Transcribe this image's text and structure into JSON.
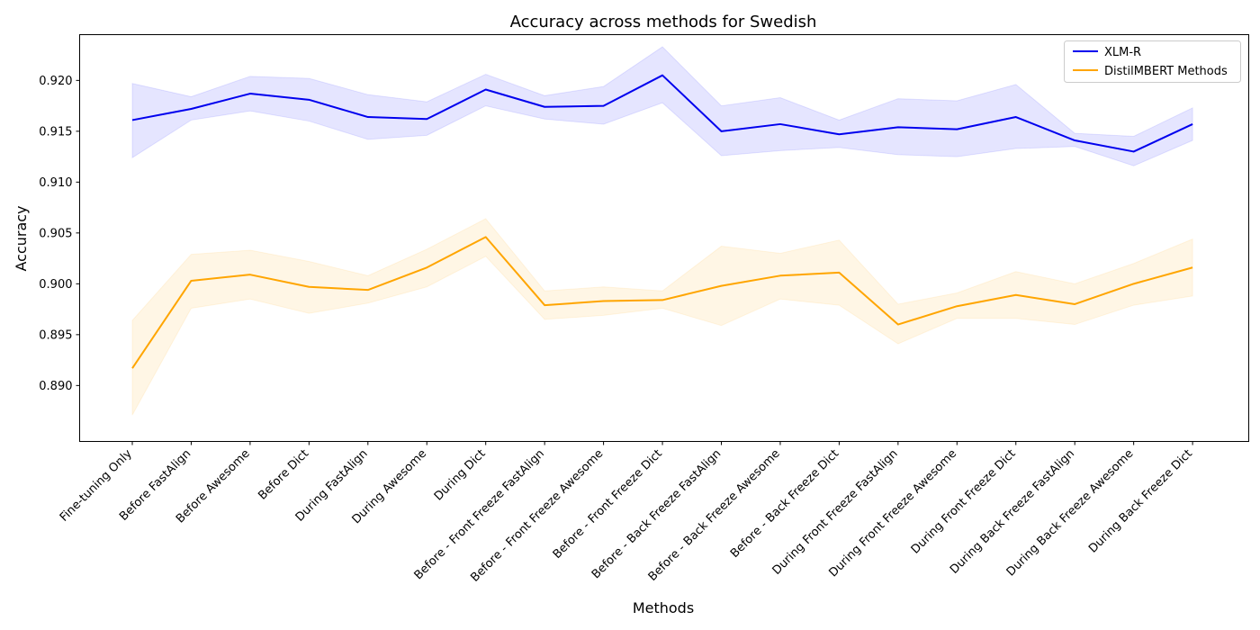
{
  "chart_data": {
    "type": "line",
    "title": "Accuracy across methods for Swedish",
    "xlabel": "Methods",
    "ylabel": "Accuracy",
    "ylim": [
      0.8845,
      0.9245
    ],
    "yticks": [
      0.89,
      0.895,
      0.9,
      0.905,
      0.91,
      0.915,
      0.92
    ],
    "ytick_labels": [
      "0.890",
      "0.895",
      "0.900",
      "0.905",
      "0.910",
      "0.915",
      "0.920"
    ],
    "legend_position": "top-right",
    "categories": [
      "Fine-tuning Only",
      "Before FastAlign",
      "Before Awesome",
      "Before Dict",
      "During FastAlign",
      "During Awesome",
      "During Dict",
      "Before - Front Freeze FastAlign",
      "Before - Front Freeze Awesome",
      "Before - Front Freeze Dict",
      "Before - Back Freeze FastAlign",
      "Before - Back Freeze Awesome",
      "Before - Back Freeze Dict",
      "During Front Freeze FastAlign",
      "During Front Freeze Awesome",
      "During Front Freeze Dict",
      "During Back Freeze FastAlign",
      "During Back Freeze Awesome",
      "During Back Freeze Dict"
    ],
    "series": [
      {
        "name": "XLM-R",
        "color": "#0000ee",
        "band_color": "#0000ff",
        "values": [
          0.9161,
          0.9172,
          0.9187,
          0.9181,
          0.9164,
          0.9162,
          0.9191,
          0.9174,
          0.9175,
          0.9205,
          0.915,
          0.9157,
          0.9147,
          0.9154,
          0.9152,
          0.9164,
          0.9141,
          0.913,
          0.9157
        ],
        "upper": [
          0.9197,
          0.9184,
          0.9204,
          0.9202,
          0.9186,
          0.9179,
          0.9206,
          0.9185,
          0.9194,
          0.9233,
          0.9175,
          0.9183,
          0.9161,
          0.9182,
          0.918,
          0.9196,
          0.9148,
          0.9145,
          0.9173
        ],
        "lower": [
          0.9124,
          0.9161,
          0.917,
          0.916,
          0.9142,
          0.9146,
          0.9175,
          0.9162,
          0.9157,
          0.9178,
          0.9126,
          0.9131,
          0.9134,
          0.9127,
          0.9125,
          0.9133,
          0.9135,
          0.9116,
          0.9141
        ]
      },
      {
        "name": "DistilMBERT Methods",
        "color": "#ffa500",
        "band_color": "#ffa500",
        "values": [
          0.8917,
          0.9003,
          0.9009,
          0.8997,
          0.8994,
          0.9016,
          0.9046,
          0.8979,
          0.8983,
          0.8984,
          0.8998,
          0.9008,
          0.9011,
          0.896,
          0.8978,
          0.8989,
          0.898,
          0.9,
          0.9016
        ],
        "upper": [
          0.8964,
          0.9029,
          0.9033,
          0.9022,
          0.9008,
          0.9034,
          0.9064,
          0.8993,
          0.8997,
          0.8993,
          0.9037,
          0.903,
          0.9043,
          0.898,
          0.8991,
          0.9012,
          0.9,
          0.902,
          0.9044
        ],
        "lower": [
          0.8871,
          0.8976,
          0.8985,
          0.8971,
          0.8981,
          0.8997,
          0.9027,
          0.8965,
          0.8969,
          0.8976,
          0.8959,
          0.8985,
          0.8979,
          0.8941,
          0.8966,
          0.8966,
          0.896,
          0.8979,
          0.8988
        ]
      }
    ]
  }
}
